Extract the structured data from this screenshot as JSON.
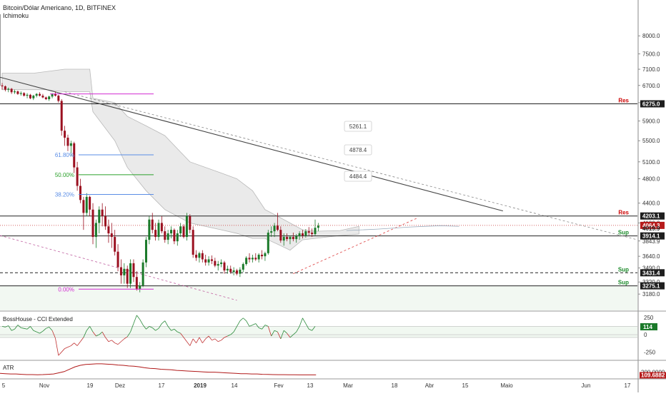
{
  "header": {
    "symbol": "Bitcoin/Dólar Americano, 1D, BITFINEX",
    "indicator": "Ichimoku"
  },
  "panes": {
    "cci_title": "BossHouse - CCI Extended",
    "atr_title": "ATR"
  },
  "colors": {
    "up": "#1b7a2a",
    "down": "#9b1020",
    "fib_618": "#5a8de6",
    "fib_500": "#2aa02a",
    "fib_382": "#5a8de6",
    "fib_000": "#d22bd2",
    "res_label": "#cc0000",
    "sup_label": "#1b8a2a",
    "cloud": "#d8d8d8",
    "trend": "#444444",
    "dashed_red": "#e05050"
  },
  "chart_data": {
    "type": "candlestick",
    "title": "Bitcoin/Dólar Americano, 1D, BITFINEX",
    "y_scale": "log",
    "ylim": [
      3000,
      9000
    ],
    "y_ticks": [
      "8000.0",
      "7500.0",
      "7100.0",
      "6700.0",
      "6300.0",
      "5900.0",
      "5500.0",
      "5100.0",
      "4800.0",
      "4400.0",
      "4100.0",
      "3843.9",
      "3640.0",
      "3490.0",
      "3320.0",
      "3180.0"
    ],
    "x_ticks": [
      "5",
      "Nov",
      "19",
      "Dez",
      "17",
      "2019",
      "14",
      "Fev",
      "13",
      "Mar",
      "18",
      "Abr",
      "15",
      "Maio",
      "Jun",
      "17"
    ],
    "price_labels": [
      {
        "text": "6275.0",
        "value": 6275,
        "style": "dark"
      },
      {
        "text": "4203.1",
        "value": 4203.1,
        "style": "dark"
      },
      {
        "text": "4064.3",
        "value": 4064.3,
        "style": "red"
      },
      {
        "text": "4019.9",
        "value": 4019.9,
        "style": "plain"
      },
      {
        "text": "3914.1",
        "value": 3914.1,
        "style": "dark"
      },
      {
        "text": "3431.4",
        "value": 3431.4,
        "style": "dark"
      },
      {
        "text": "3275.1",
        "value": 3275.1,
        "style": "dark"
      }
    ],
    "levels": [
      {
        "label": "Res",
        "value": 6275.0,
        "kind": "res"
      },
      {
        "label": "Res",
        "value": 4203.1,
        "kind": "res"
      },
      {
        "label": "Sup",
        "value": 3914.1,
        "kind": "sup"
      },
      {
        "label": "Sup",
        "value": 3431.4,
        "kind": "sup"
      },
      {
        "label": "Sup",
        "value": 3275.1,
        "kind": "sup"
      }
    ],
    "fib": [
      {
        "label": "61.80%",
        "value": 5230
      },
      {
        "label": "50.00%",
        "value": 4870
      },
      {
        "label": "38.20%",
        "value": 4540
      },
      {
        "label": "0.00%",
        "value": 3236
      }
    ],
    "callouts": [
      "5261.1",
      "4878.4",
      "4484.4"
    ],
    "candles": [
      [
        6700,
        6760,
        6600,
        6680
      ],
      [
        6680,
        6700,
        6560,
        6600
      ],
      [
        6600,
        6650,
        6540,
        6620
      ],
      [
        6620,
        6640,
        6500,
        6540
      ],
      [
        6540,
        6600,
        6500,
        6560
      ],
      [
        6560,
        6580,
        6480,
        6500
      ],
      [
        6500,
        6560,
        6460,
        6520
      ],
      [
        6520,
        6540,
        6440,
        6460
      ],
      [
        6460,
        6520,
        6400,
        6480
      ],
      [
        6480,
        6500,
        6380,
        6400
      ],
      [
        6400,
        6480,
        6360,
        6460
      ],
      [
        6460,
        6520,
        6420,
        6500
      ],
      [
        6500,
        6540,
        6440,
        6460
      ],
      [
        6460,
        6500,
        6400,
        6420
      ],
      [
        6420,
        6440,
        6360,
        6380
      ],
      [
        6380,
        6460,
        6340,
        6440
      ],
      [
        6440,
        6520,
        6400,
        6500
      ],
      [
        6500,
        6560,
        6440,
        6460
      ],
      [
        6460,
        6480,
        6300,
        6340
      ],
      [
        6340,
        6380,
        5600,
        5700
      ],
      [
        5700,
        5800,
        5400,
        5560
      ],
      [
        5560,
        5620,
        5300,
        5400
      ],
      [
        5400,
        5500,
        5200,
        5450
      ],
      [
        5450,
        5480,
        4900,
        5000
      ],
      [
        5000,
        5100,
        4600,
        4680
      ],
      [
        4680,
        4800,
        4400,
        4450
      ],
      [
        4450,
        4500,
        4000,
        4250
      ],
      [
        4250,
        4560,
        4200,
        4500
      ],
      [
        4500,
        4520,
        4200,
        4300
      ],
      [
        4300,
        4400,
        3800,
        3900
      ],
      [
        3900,
        4150,
        3750,
        4100
      ],
      [
        4100,
        4350,
        3950,
        4300
      ],
      [
        4300,
        4400,
        4050,
        4200
      ],
      [
        4200,
        4350,
        4000,
        4050
      ],
      [
        4050,
        4150,
        3820,
        3950
      ],
      [
        3950,
        4100,
        3750,
        3900
      ],
      [
        3900,
        4000,
        3650,
        3700
      ],
      [
        3700,
        3800,
        3450,
        3500
      ],
      [
        3500,
        3600,
        3300,
        3400
      ],
      [
        3400,
        3550,
        3300,
        3480
      ],
      [
        3480,
        3520,
        3250,
        3300
      ],
      [
        3300,
        3600,
        3250,
        3550
      ],
      [
        3550,
        3600,
        3320,
        3380
      ],
      [
        3380,
        3450,
        3220,
        3240
      ],
      [
        3240,
        3320,
        3200,
        3280
      ],
      [
        3280,
        3600,
        3260,
        3560
      ],
      [
        3560,
        3900,
        3500,
        3860
      ],
      [
        3860,
        4200,
        3800,
        4150
      ],
      [
        4150,
        4250,
        3950,
        4000
      ],
      [
        4000,
        4100,
        3850,
        3900
      ],
      [
        3900,
        4150,
        3850,
        4100
      ],
      [
        4100,
        4200,
        3950,
        3980
      ],
      [
        3980,
        4050,
        3820,
        3860
      ],
      [
        3860,
        4000,
        3800,
        3950
      ],
      [
        3950,
        4050,
        3880,
        4000
      ],
      [
        4000,
        4020,
        3800,
        3840
      ],
      [
        3840,
        4000,
        3780,
        3950
      ],
      [
        3950,
        4100,
        3900,
        4050
      ],
      [
        4050,
        4080,
        3880,
        3900
      ],
      [
        3900,
        4250,
        3850,
        4200
      ],
      [
        4200,
        4230,
        3950,
        4000
      ],
      [
        4000,
        4050,
        3620,
        3660
      ],
      [
        3660,
        3720,
        3580,
        3620
      ],
      [
        3620,
        3700,
        3560,
        3680
      ],
      [
        3680,
        3720,
        3560,
        3600
      ],
      [
        3600,
        3660,
        3520,
        3560
      ],
      [
        3560,
        3640,
        3520,
        3600
      ],
      [
        3600,
        3650,
        3540,
        3580
      ],
      [
        3580,
        3620,
        3500,
        3520
      ],
      [
        3520,
        3580,
        3460,
        3540
      ],
      [
        3540,
        3600,
        3500,
        3560
      ],
      [
        3560,
        3580,
        3420,
        3460
      ],
      [
        3460,
        3520,
        3420,
        3480
      ],
      [
        3480,
        3520,
        3420,
        3440
      ],
      [
        3440,
        3500,
        3400,
        3460
      ],
      [
        3460,
        3480,
        3400,
        3420
      ],
      [
        3420,
        3500,
        3380,
        3470
      ],
      [
        3470,
        3560,
        3440,
        3540
      ],
      [
        3540,
        3640,
        3520,
        3620
      ],
      [
        3620,
        3680,
        3560,
        3600
      ],
      [
        3600,
        3660,
        3560,
        3620
      ],
      [
        3620,
        3680,
        3580,
        3600
      ],
      [
        3600,
        3680,
        3560,
        3660
      ],
      [
        3660,
        3720,
        3600,
        3640
      ],
      [
        3640,
        3700,
        3580,
        3680
      ],
      [
        3680,
        4000,
        3660,
        3960
      ],
      [
        3960,
        4050,
        3900,
        3980
      ],
      [
        3980,
        4100,
        3900,
        4060
      ],
      [
        4060,
        4250,
        3980,
        4000
      ],
      [
        4000,
        4050,
        3820,
        3850
      ],
      [
        3850,
        3950,
        3780,
        3900
      ],
      [
        3900,
        3950,
        3840,
        3870
      ],
      [
        3870,
        3920,
        3800,
        3900
      ],
      [
        3900,
        3960,
        3840,
        3870
      ],
      [
        3870,
        3940,
        3820,
        3910
      ],
      [
        3910,
        3980,
        3860,
        3950
      ],
      [
        3950,
        4000,
        3880,
        3920
      ],
      [
        3920,
        4010,
        3890,
        3980
      ],
      [
        3980,
        4040,
        3920,
        3960
      ],
      [
        3960,
        4020,
        3900,
        3940
      ],
      [
        3940,
        4150,
        3920,
        4030
      ],
      [
        4030,
        4100,
        3980,
        4060
      ]
    ],
    "ichimoku_cloud": {
      "upper": [
        [
          0,
          7000
        ],
        [
          10,
          7000
        ],
        [
          20,
          7100
        ],
        [
          28,
          7100
        ],
        [
          29,
          6400
        ],
        [
          36,
          6300
        ],
        [
          40,
          6000
        ],
        [
          46,
          5800
        ],
        [
          52,
          5600
        ],
        [
          60,
          5100
        ],
        [
          70,
          4900
        ],
        [
          75,
          4800
        ],
        [
          80,
          4600
        ],
        [
          84,
          4300
        ],
        [
          88,
          4200
        ],
        [
          96,
          4000
        ],
        [
          100,
          3980
        ],
        [
          108,
          3990
        ],
        [
          114,
          4050
        ]
      ],
      "lower": [
        [
          0,
          6600
        ],
        [
          14,
          6600
        ],
        [
          20,
          6550
        ],
        [
          28,
          6550
        ],
        [
          29,
          6100
        ],
        [
          36,
          5500
        ],
        [
          40,
          5000
        ],
        [
          46,
          4600
        ],
        [
          52,
          4300
        ],
        [
          60,
          4100
        ],
        [
          70,
          4000
        ],
        [
          75,
          3950
        ],
        [
          80,
          3880
        ],
        [
          84,
          3880
        ],
        [
          88,
          3800
        ],
        [
          92,
          3720
        ],
        [
          96,
          3860
        ],
        [
          100,
          3880
        ],
        [
          108,
          3920
        ],
        [
          114,
          3940
        ]
      ]
    },
    "cci": {
      "title": "BossHouse - CCI Extended",
      "ylim": [
        -350,
        320
      ],
      "ticks": [
        "250",
        "0",
        "-250"
      ],
      "value_label": "114",
      "values": [
        120,
        110,
        130,
        60,
        80,
        140,
        100,
        90,
        80,
        120,
        60,
        40,
        20,
        50,
        90,
        110,
        60,
        -50,
        -300,
        -250,
        -200,
        -180,
        -160,
        -120,
        -160,
        -100,
        -40,
        60,
        120,
        40,
        -20,
        0,
        40,
        -40,
        -100,
        -80,
        -120,
        -140,
        -100,
        -60,
        -30,
        40,
        160,
        280,
        220,
        140,
        80,
        120,
        100,
        60,
        90,
        160,
        200,
        120,
        60,
        80,
        40,
        20,
        -40,
        -100,
        -160,
        -60,
        -120,
        -40,
        -120,
        -60,
        -20,
        -80,
        -60,
        -100,
        -80,
        -40,
        -20,
        0,
        40,
        120,
        200,
        240,
        200,
        120,
        140,
        160,
        100,
        80,
        140,
        120,
        -20,
        60,
        40,
        -60,
        60,
        20,
        -40,
        0,
        40,
        120,
        240,
        160,
        80,
        60,
        120
      ]
    },
    "atr": {
      "title": "ATR",
      "ylim": [
        0,
        550
      ],
      "ticks": [
        "200.0000"
      ],
      "value_label": "109.6882",
      "values": [
        160,
        150,
        140,
        140,
        130,
        120,
        120,
        115,
        120,
        130,
        140,
        180,
        220,
        300,
        380,
        430,
        460,
        470,
        480,
        480,
        470,
        460,
        440,
        430,
        410,
        400,
        380,
        350,
        330,
        320,
        300,
        290,
        280,
        260,
        250,
        240,
        230,
        220,
        210,
        200,
        200,
        190,
        180,
        170,
        160,
        150,
        150,
        140,
        140,
        130,
        125,
        120,
        118,
        116,
        115,
        114,
        112,
        110,
        110,
        110
      ]
    }
  }
}
